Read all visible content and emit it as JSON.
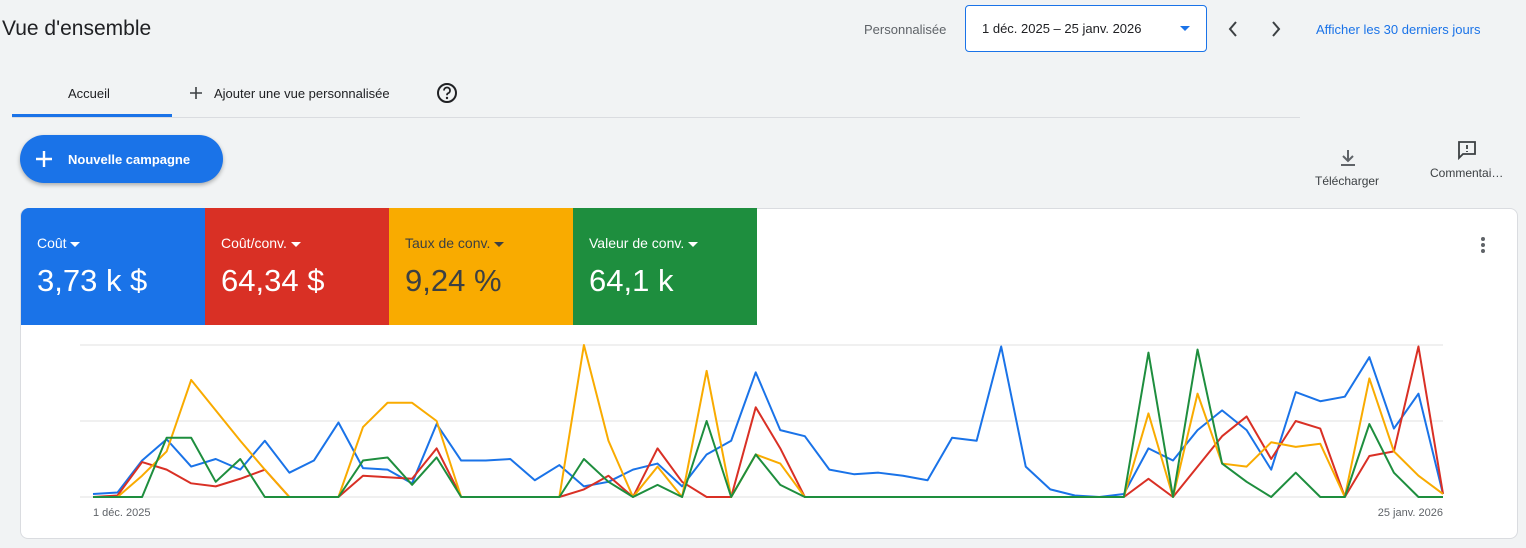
{
  "header": {
    "title": "Vue d'ensemble",
    "range_label": "Personnalisée",
    "date_range": "1 déc. 2025 – 25 janv. 2026",
    "link": "Afficher les 30 derniers jours"
  },
  "tabs": [
    "Accueil",
    "Ajouter une vue personnalisée"
  ],
  "new_campaign": "Nouvelle campagne",
  "actions": [
    "Télécharger",
    "Commentai…"
  ],
  "chart_data": {
    "type": "line",
    "categories": [
      "1 déc. 2025",
      null,
      null,
      null,
      null,
      null,
      null,
      null,
      null,
      null,
      null,
      null,
      null,
      null,
      null,
      null,
      null,
      null,
      null,
      null,
      null,
      null,
      null,
      null,
      null,
      null,
      null,
      null,
      null,
      null,
      null,
      null,
      null,
      null,
      null,
      null,
      null,
      null,
      null,
      null,
      null,
      null,
      null,
      null,
      null,
      null,
      null,
      null,
      null,
      null,
      null,
      null,
      null,
      null,
      null,
      "25 janv. 2026"
    ],
    "ylim": [
      0,
      100
    ],
    "yticks": [
      0,
      50,
      100
    ],
    "grid": true,
    "series": [
      {
        "name": "Coût",
        "total": "3,73 k $",
        "color": "#1a73e8",
        "values": [
          2,
          3,
          24,
          38,
          20,
          25,
          18,
          37,
          16,
          24,
          49,
          19,
          18,
          9,
          48,
          24,
          24,
          25,
          11,
          21,
          7,
          10,
          18,
          22,
          7,
          28,
          37,
          82,
          44,
          40,
          18,
          15,
          16,
          14,
          11,
          39,
          37,
          99,
          20,
          5,
          1,
          0,
          2,
          32,
          24,
          44,
          57,
          44,
          18,
          69,
          63,
          66,
          92,
          45,
          68,
          2
        ]
      },
      {
        "name": "Coût/conv.",
        "total": "64,34 $",
        "color": "#d93025",
        "values": [
          0,
          1,
          23,
          18,
          9,
          7,
          12,
          18,
          0,
          0,
          0,
          14,
          13,
          12,
          32,
          0,
          0,
          0,
          0,
          0,
          5,
          14,
          0,
          32,
          10,
          0,
          0,
          59,
          32,
          0,
          0,
          0,
          0,
          0,
          0,
          0,
          0,
          0,
          0,
          0,
          0,
          0,
          0,
          12,
          0,
          20,
          40,
          53,
          25,
          50,
          45,
          0,
          27,
          30,
          99,
          2
        ]
      },
      {
        "name": "Taux de conv.",
        "total": "9,24 %",
        "color": "#f9ab00",
        "values": [
          0,
          0,
          14,
          30,
          77,
          57,
          37,
          18,
          0,
          0,
          0,
          46,
          62,
          62,
          50,
          0,
          0,
          0,
          0,
          0,
          100,
          37,
          0,
          20,
          0,
          83,
          0,
          28,
          22,
          0,
          0,
          0,
          0,
          0,
          0,
          0,
          0,
          0,
          0,
          0,
          0,
          0,
          0,
          55,
          0,
          68,
          22,
          20,
          36,
          33,
          35,
          0,
          78,
          30,
          14,
          2
        ]
      },
      {
        "name": "Valeur de conv.",
        "total": "64,1 k",
        "color": "#1e8e3e",
        "values": [
          0,
          0,
          0,
          39,
          39,
          10,
          25,
          0,
          0,
          0,
          0,
          24,
          26,
          8,
          26,
          0,
          0,
          0,
          0,
          0,
          25,
          10,
          0,
          8,
          0,
          50,
          0,
          28,
          8,
          0,
          0,
          0,
          0,
          0,
          0,
          0,
          0,
          0,
          0,
          0,
          0,
          0,
          0,
          95,
          0,
          97,
          22,
          10,
          0,
          16,
          0,
          0,
          48,
          16,
          0,
          0
        ]
      }
    ]
  }
}
